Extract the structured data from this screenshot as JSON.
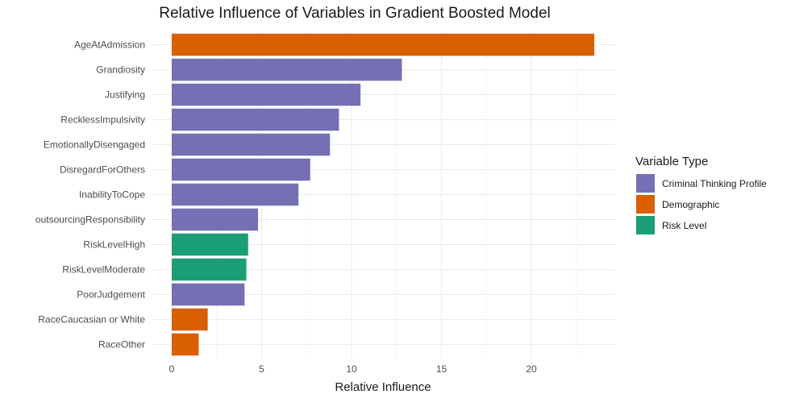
{
  "chart_data": {
    "type": "bar",
    "orientation": "horizontal",
    "title": "Relative Influence of Variables in Gradient Boosted Model",
    "xlabel": "Relative Influence",
    "ylabel": "",
    "xlim": [
      0,
      24.5
    ],
    "xticks": [
      0,
      5,
      10,
      15,
      20
    ],
    "grid": true,
    "legend": {
      "title": "Variable Type",
      "placement": "right",
      "entries": [
        {
          "name": "Criminal Thinking Profile",
          "color": "#7570b3"
        },
        {
          "name": "Demographic",
          "color": "#d95f02"
        },
        {
          "name": "Risk Level",
          "color": "#1b9e77"
        }
      ]
    },
    "categories": [
      "AgeAtAdmission",
      "Grandiosity",
      "Justifying",
      "RecklessImpulsivity",
      "EmotionallyDisengaged",
      "DisregardForOthers",
      "InabilityToCope",
      "outsourcingResponsibility",
      "RiskLevelHigh",
      "RiskLevelModerate",
      "PoorJudgement",
      "RaceCaucasian or White",
      "RaceOther"
    ],
    "values": [
      23.5,
      12.8,
      10.5,
      9.3,
      8.8,
      7.7,
      7.05,
      4.8,
      4.25,
      4.15,
      4.05,
      2.0,
      1.5
    ],
    "groups": [
      "Demographic",
      "Criminal Thinking Profile",
      "Criminal Thinking Profile",
      "Criminal Thinking Profile",
      "Criminal Thinking Profile",
      "Criminal Thinking Profile",
      "Criminal Thinking Profile",
      "Criminal Thinking Profile",
      "Risk Level",
      "Risk Level",
      "Criminal Thinking Profile",
      "Demographic",
      "Demographic"
    ]
  }
}
